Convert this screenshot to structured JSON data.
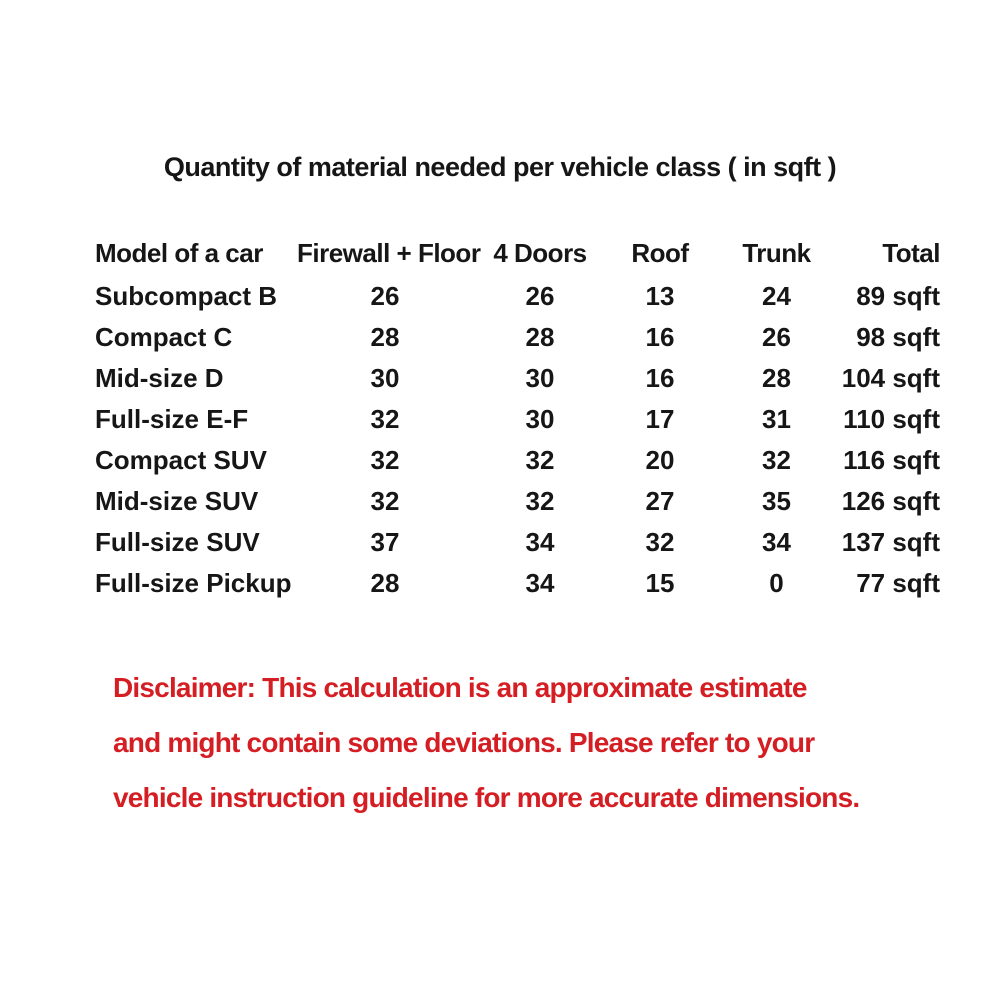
{
  "title": "Quantity of material needed per vehicle class ( in sqft )",
  "table": {
    "columns": [
      "Model of a car",
      "Firewall + Floor",
      "4 Doors",
      "Roof",
      "Trunk",
      "Total"
    ],
    "rows": [
      {
        "model": "Subcompact B",
        "firewall_floor": "26",
        "doors": "26",
        "roof": "13",
        "trunk": "24",
        "total": "89 sqft"
      },
      {
        "model": "Compact C",
        "firewall_floor": "28",
        "doors": "28",
        "roof": "16",
        "trunk": "26",
        "total": "98 sqft"
      },
      {
        "model": "Mid-size D",
        "firewall_floor": "30",
        "doors": "30",
        "roof": "16",
        "trunk": "28",
        "total": "104 sqft"
      },
      {
        "model": "Full-size E-F",
        "firewall_floor": "32",
        "doors": "30",
        "roof": "17",
        "trunk": "31",
        "total": "110 sqft"
      },
      {
        "model": "Compact SUV",
        "firewall_floor": "32",
        "doors": "32",
        "roof": "20",
        "trunk": "32",
        "total": "116 sqft"
      },
      {
        "model": "Mid-size SUV",
        "firewall_floor": "32",
        "doors": "32",
        "roof": "27",
        "trunk": "35",
        "total": "126 sqft"
      },
      {
        "model": "Full-size SUV",
        "firewall_floor": "37",
        "doors": "34",
        "roof": "32",
        "trunk": "34",
        "total": "137 sqft"
      },
      {
        "model": "Full-size Pickup",
        "firewall_floor": "28",
        "doors": "34",
        "roof": "15",
        "trunk": "0",
        "total": "77 sqft"
      }
    ]
  },
  "disclaimer": {
    "lines": [
      "Disclaimer: This calculation is an approximate estimate",
      "and might contain some deviations. Please refer to your",
      "vehicle instruction guideline for more accurate dimensions."
    ],
    "color": "#d51e23"
  },
  "colors": {
    "background": "#ffffff",
    "text": "#161616",
    "disclaimer_red": "#d51e23"
  }
}
